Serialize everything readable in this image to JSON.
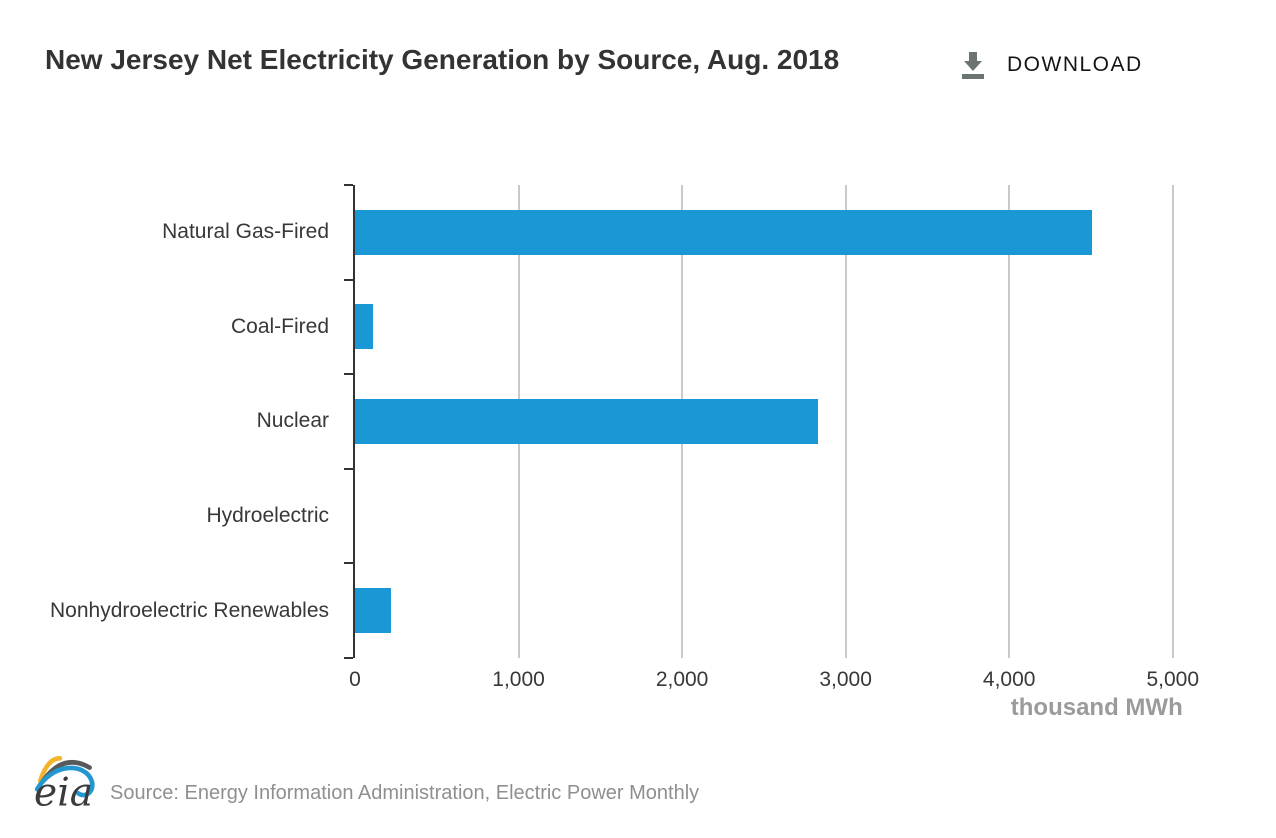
{
  "header": {
    "title": "New Jersey Net Electricity Generation by Source, Aug. 2018",
    "download_label": "DOWNLOAD"
  },
  "chart_data": {
    "type": "bar",
    "orientation": "horizontal",
    "title": "New Jersey Net Electricity Generation by Source, Aug. 2018",
    "categories": [
      "Natural Gas-Fired",
      "Coal-Fired",
      "Nuclear",
      "Hydroelectric",
      "Nonhydroelectric Renewables"
    ],
    "values": [
      4505,
      113,
      2830,
      0,
      223
    ],
    "xlabel": "thousand MWh",
    "x_ticks": [
      0,
      1000,
      2000,
      3000,
      4000,
      5000
    ],
    "x_tick_labels": [
      "0",
      "1,000",
      "2,000",
      "3,000",
      "4,000",
      "5,000"
    ],
    "xlim": [
      0,
      5240
    ],
    "grid": true,
    "legend": false,
    "bar_color": "#1a98d5",
    "axis_color": "#333333",
    "gridline_color": "#c9c9c9"
  },
  "footer": {
    "logo_text": "eia",
    "source": "Source: Energy Information Administration, Electric Power Monthly"
  }
}
